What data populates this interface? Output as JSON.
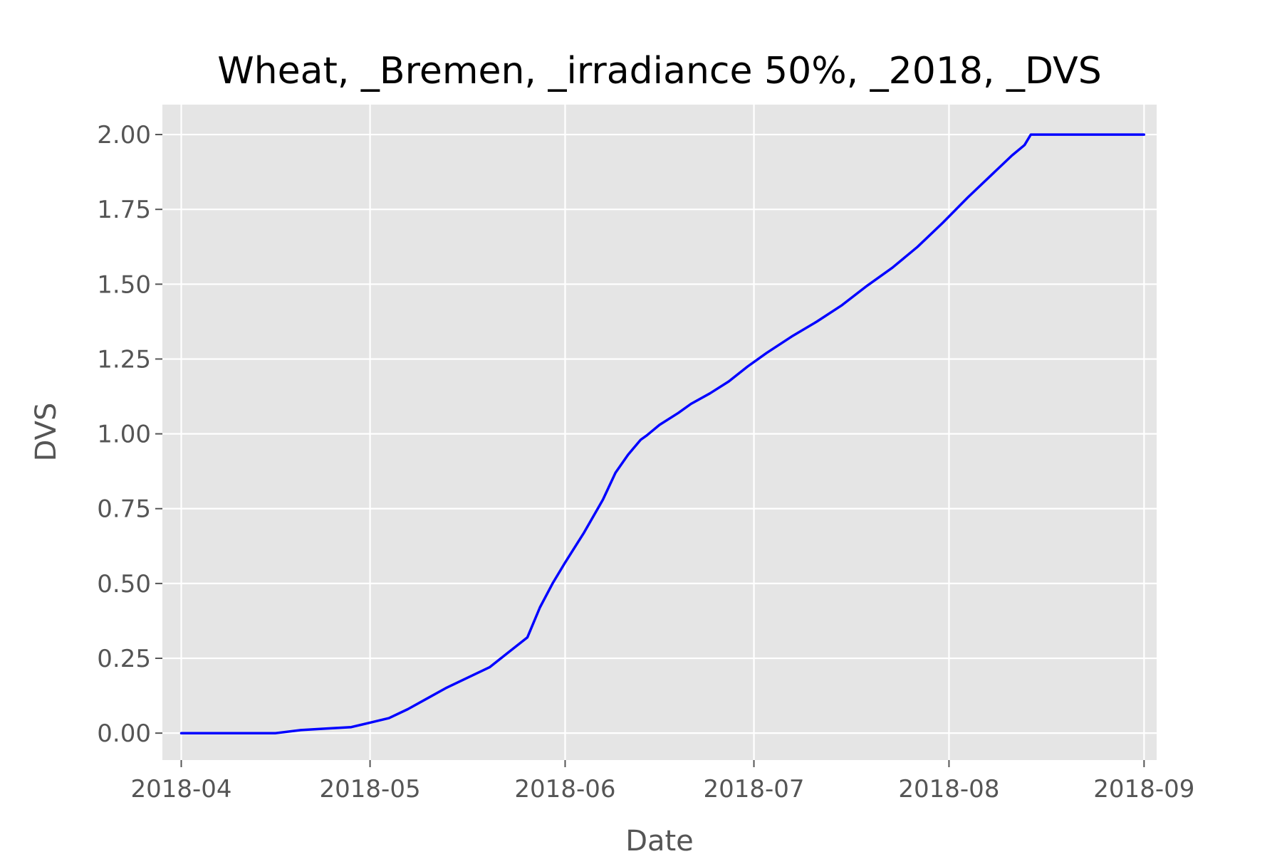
{
  "chart_data": {
    "type": "line",
    "title": "Wheat, _Bremen, _irradiance 50%, _2018, _DVS",
    "xlabel": "Date",
    "ylabel": "DVS",
    "x_type": "date",
    "xlim": [
      "2018-03-29",
      "2018-09-03"
    ],
    "ylim": [
      -0.09,
      2.1
    ],
    "grid": true,
    "background": "#e5e5e5",
    "x_ticks": [
      "2018-04-01",
      "2018-05-01",
      "2018-06-01",
      "2018-07-01",
      "2018-08-01",
      "2018-09-01"
    ],
    "x_tick_labels": [
      "2018-04",
      "2018-05",
      "2018-06",
      "2018-07",
      "2018-08",
      "2018-09"
    ],
    "y_ticks": [
      0,
      0.25,
      0.5,
      0.75,
      1.0,
      1.25,
      1.5,
      1.75,
      2.0
    ],
    "y_tick_labels": [
      "0.00",
      "0.25",
      "0.50",
      "0.75",
      "1.00",
      "1.25",
      "1.50",
      "1.75",
      "2.00"
    ],
    "series": [
      {
        "color": "#0000ff",
        "x": [
          "2018-04-01",
          "2018-04-08",
          "2018-04-16",
          "2018-04-20",
          "2018-04-24",
          "2018-04-28",
          "2018-05-01",
          "2018-05-04",
          "2018-05-07",
          "2018-05-10",
          "2018-05-13",
          "2018-05-17",
          "2018-05-20",
          "2018-05-23",
          "2018-05-26",
          "2018-05-28",
          "2018-05-30",
          "2018-06-01",
          "2018-06-04",
          "2018-06-07",
          "2018-06-09",
          "2018-06-11",
          "2018-06-13",
          "2018-06-14",
          "2018-06-16",
          "2018-06-19",
          "2018-06-21",
          "2018-06-24",
          "2018-06-27",
          "2018-06-30",
          "2018-07-03",
          "2018-07-07",
          "2018-07-11",
          "2018-07-15",
          "2018-07-19",
          "2018-07-23",
          "2018-07-27",
          "2018-07-31",
          "2018-08-04",
          "2018-08-08",
          "2018-08-11",
          "2018-08-13",
          "2018-08-14",
          "2018-08-20",
          "2018-08-27",
          "2018-09-01"
        ],
        "y": [
          0.0,
          0.0,
          0.0,
          0.01,
          0.015,
          0.02,
          0.035,
          0.05,
          0.08,
          0.115,
          0.15,
          0.19,
          0.22,
          0.27,
          0.32,
          0.42,
          0.5,
          0.57,
          0.67,
          0.78,
          0.87,
          0.93,
          0.98,
          0.995,
          1.03,
          1.07,
          1.1,
          1.135,
          1.175,
          1.225,
          1.27,
          1.325,
          1.375,
          1.43,
          1.495,
          1.555,
          1.625,
          1.705,
          1.79,
          1.87,
          1.93,
          1.965,
          2.0,
          2.0,
          2.0,
          2.0
        ]
      }
    ]
  }
}
